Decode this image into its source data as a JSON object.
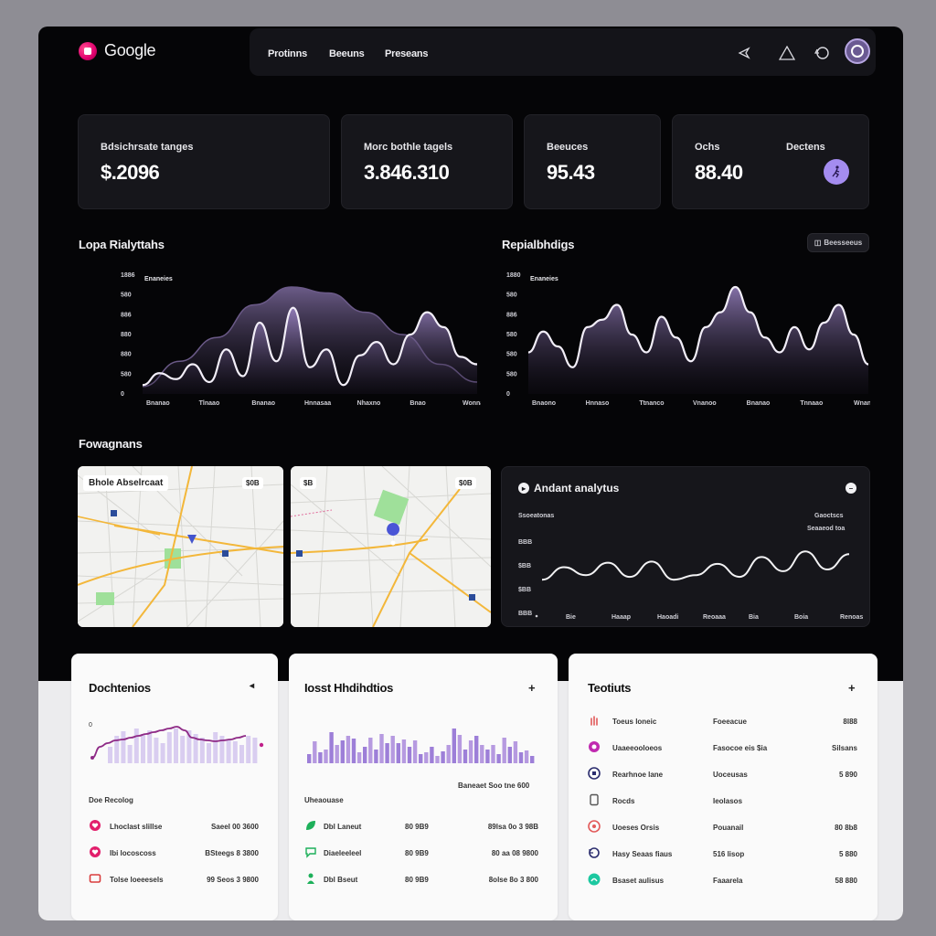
{
  "app": {
    "logo_text": "Google"
  },
  "nav": {
    "items": [
      "Protinns",
      "Beeuns",
      "Preseans"
    ],
    "icons": [
      "send-icon",
      "triangle-icon",
      "refresh-icon",
      "avatar"
    ]
  },
  "stats": [
    {
      "label": "Bdsichrsate tanges",
      "value": "$.2096"
    },
    {
      "label": "Morc bothle tagels",
      "value": "3.846.310"
    },
    {
      "label": "Beeuces",
      "value": "95.43"
    },
    {
      "label": "Ochs",
      "label2": "Dectens",
      "value": "88.40",
      "button_icon": "person-walk-icon"
    }
  ],
  "charts": {
    "left": {
      "title": "Lopa Rialyttahs",
      "legend": "Enaneies",
      "y_ticks": [
        "1886",
        "580",
        "886",
        "880",
        "880",
        "580",
        "0"
      ],
      "x_ticks": [
        "Bnanao",
        "Tlnaao",
        "Bnanao",
        "Hnnasaa",
        "Nhaxno",
        "Bnao",
        "Wonnao"
      ],
      "chart_data": {
        "type": "area",
        "series": [
          {
            "values": [
              5,
              22,
              38,
              60,
              72,
              68,
              55,
              40,
              20,
              8
            ]
          },
          {
            "values": [
              6,
              14,
              10,
              20,
              8,
              30,
              12,
              48,
              22,
              58,
              18,
              30,
              6,
              26,
              35,
              20,
              40,
              55,
              45,
              25,
              20
            ]
          }
        ]
      }
    },
    "right": {
      "title": "Repialbhdigs",
      "chip": "Beesseeus",
      "legend": "Enaneies",
      "y_ticks": [
        "1880",
        "580",
        "886",
        "580",
        "580",
        "580",
        "0"
      ],
      "x_ticks": [
        "Bnaono",
        "Hnnaso",
        "Ttnanco",
        "Vnanoo",
        "Bnanao",
        "Tnnaao",
        "Wnanao"
      ],
      "chart_data": {
        "type": "area",
        "series": [
          {
            "values": [
              28,
              42,
              32,
              18,
              45,
              50,
              60,
              40,
              28,
              52,
              38,
              22,
              45,
              55,
              72,
              55,
              38,
              28,
              45,
              30,
              48,
              60,
              40,
              20
            ]
          }
        ]
      }
    }
  },
  "maps_section": {
    "title": "Fowagnans"
  },
  "maps": [
    {
      "label": "Bhole Abselrcaat",
      "badge": "$0B"
    },
    {
      "label": "$B",
      "badge": "$0B"
    }
  ],
  "analytics": {
    "title": "Andant analytus",
    "top_left": "Ssoeatonas",
    "top_right1": "Gaoctscs",
    "top_right2": "Seaaeod toa",
    "y_ticks": [
      "BBB",
      "$BB",
      "$BB",
      "BBB"
    ],
    "x_ticks": [
      "Bie",
      "Haaap",
      "Haoadi",
      "Reoaaa",
      "Bia",
      "Boia",
      "Renoas"
    ],
    "chart_data": {
      "type": "line",
      "series": [
        {
          "values": [
            40,
            62,
            48,
            70,
            45,
            72,
            40,
            48,
            68,
            45,
            80,
            55,
            90,
            58,
            85
          ]
        }
      ]
    }
  },
  "cards": [
    {
      "title": "Dochtenios",
      "subtitle": "Doe Recolog",
      "rows": [
        {
          "label": "Lhoclast slillse",
          "value": "Saeel 00 3600",
          "icon": "heart-icon",
          "color": "#e21f6c"
        },
        {
          "label": "Ibi locoscoss",
          "value": "BSteegs 8 3800",
          "icon": "heart-icon",
          "color": "#e21f6c"
        },
        {
          "label": "Tolse loeeesels",
          "value": "99 Seos 3 9800",
          "icon": "tv-icon",
          "color": "#d93c3c"
        }
      ],
      "chart_data": {
        "type": "bar",
        "values": [
          18,
          30,
          35,
          20,
          38,
          32,
          36,
          28,
          22,
          34,
          38,
          30,
          36,
          32,
          28,
          22,
          34,
          30,
          26,
          24,
          20,
          30,
          28
        ],
        "line": [
          6,
          18,
          22,
          25,
          26,
          28,
          30,
          32,
          34,
          36,
          38,
          40,
          36,
          28,
          26,
          25,
          24,
          25,
          26,
          28,
          30
        ]
      }
    },
    {
      "title": "Iosst Hhdihdtios",
      "subtitle": "Uheaouase",
      "header_right": "Baneaet Soo tne 600",
      "rows": [
        {
          "label": "Dbl Laneut",
          "mid": "80 9B9",
          "value": "89lsa 0o 3 98B",
          "icon": "leaf-icon",
          "color": "#1db05a"
        },
        {
          "label": "Diaeleeleel",
          "mid": "80 9B9",
          "value": "80 aa 08 9800",
          "icon": "chat-icon",
          "color": "#1db05a"
        },
        {
          "label": "Dbl Bseut",
          "mid": "80 9B9",
          "value": "8olse 8o 3 800",
          "icon": "person-icon",
          "color": "#1db05a"
        }
      ],
      "chart_data": {
        "type": "bar",
        "values": [
          10,
          24,
          12,
          15,
          34,
          20,
          25,
          30,
          27,
          12,
          18,
          28,
          15,
          32,
          22,
          30,
          22,
          26,
          18,
          25,
          10,
          12,
          18,
          8,
          13,
          20,
          38,
          31,
          15,
          25,
          30,
          20,
          15,
          20,
          10,
          28,
          18,
          24,
          12,
          14,
          8
        ]
      }
    },
    {
      "title": "Teotiuts",
      "rows": [
        {
          "label": "Toeus loneic",
          "mid": "Foeeacue",
          "value": "8l88",
          "icon": "hand-icon",
          "color": "#e25a5a"
        },
        {
          "label": "Uaaeeooloeos",
          "mid": "Fasocoe eis $ia",
          "value": "Silsans",
          "icon": "flower-icon",
          "color": "#c02ab0"
        },
        {
          "label": "Rearhnoe lane",
          "mid": "Uoceusas",
          "value": "5 890",
          "icon": "square-icon",
          "color": "#2b2d6e"
        },
        {
          "label": "Rocds",
          "mid": "Ieolasos",
          "value": "",
          "icon": "tablet-icon",
          "color": "#555"
        },
        {
          "label": "Uoeses Orsis",
          "mid": "Pouanail",
          "value": "80 8b8",
          "icon": "badge-icon",
          "color": "#e25a5a"
        },
        {
          "label": "Hasy Seaas fiaus",
          "mid": "516 lisop",
          "value": "5 880",
          "icon": "refresh-icon",
          "color": "#2b2d6e"
        },
        {
          "label": "Bsaset aulisus",
          "mid": "Faaarela",
          "value": "58 880",
          "icon": "circle-icon",
          "color": "#1cc8a0"
        }
      ]
    }
  ],
  "colors": {
    "accent": "#a48cf0",
    "brand": "#e0006e",
    "background": "#050507"
  }
}
